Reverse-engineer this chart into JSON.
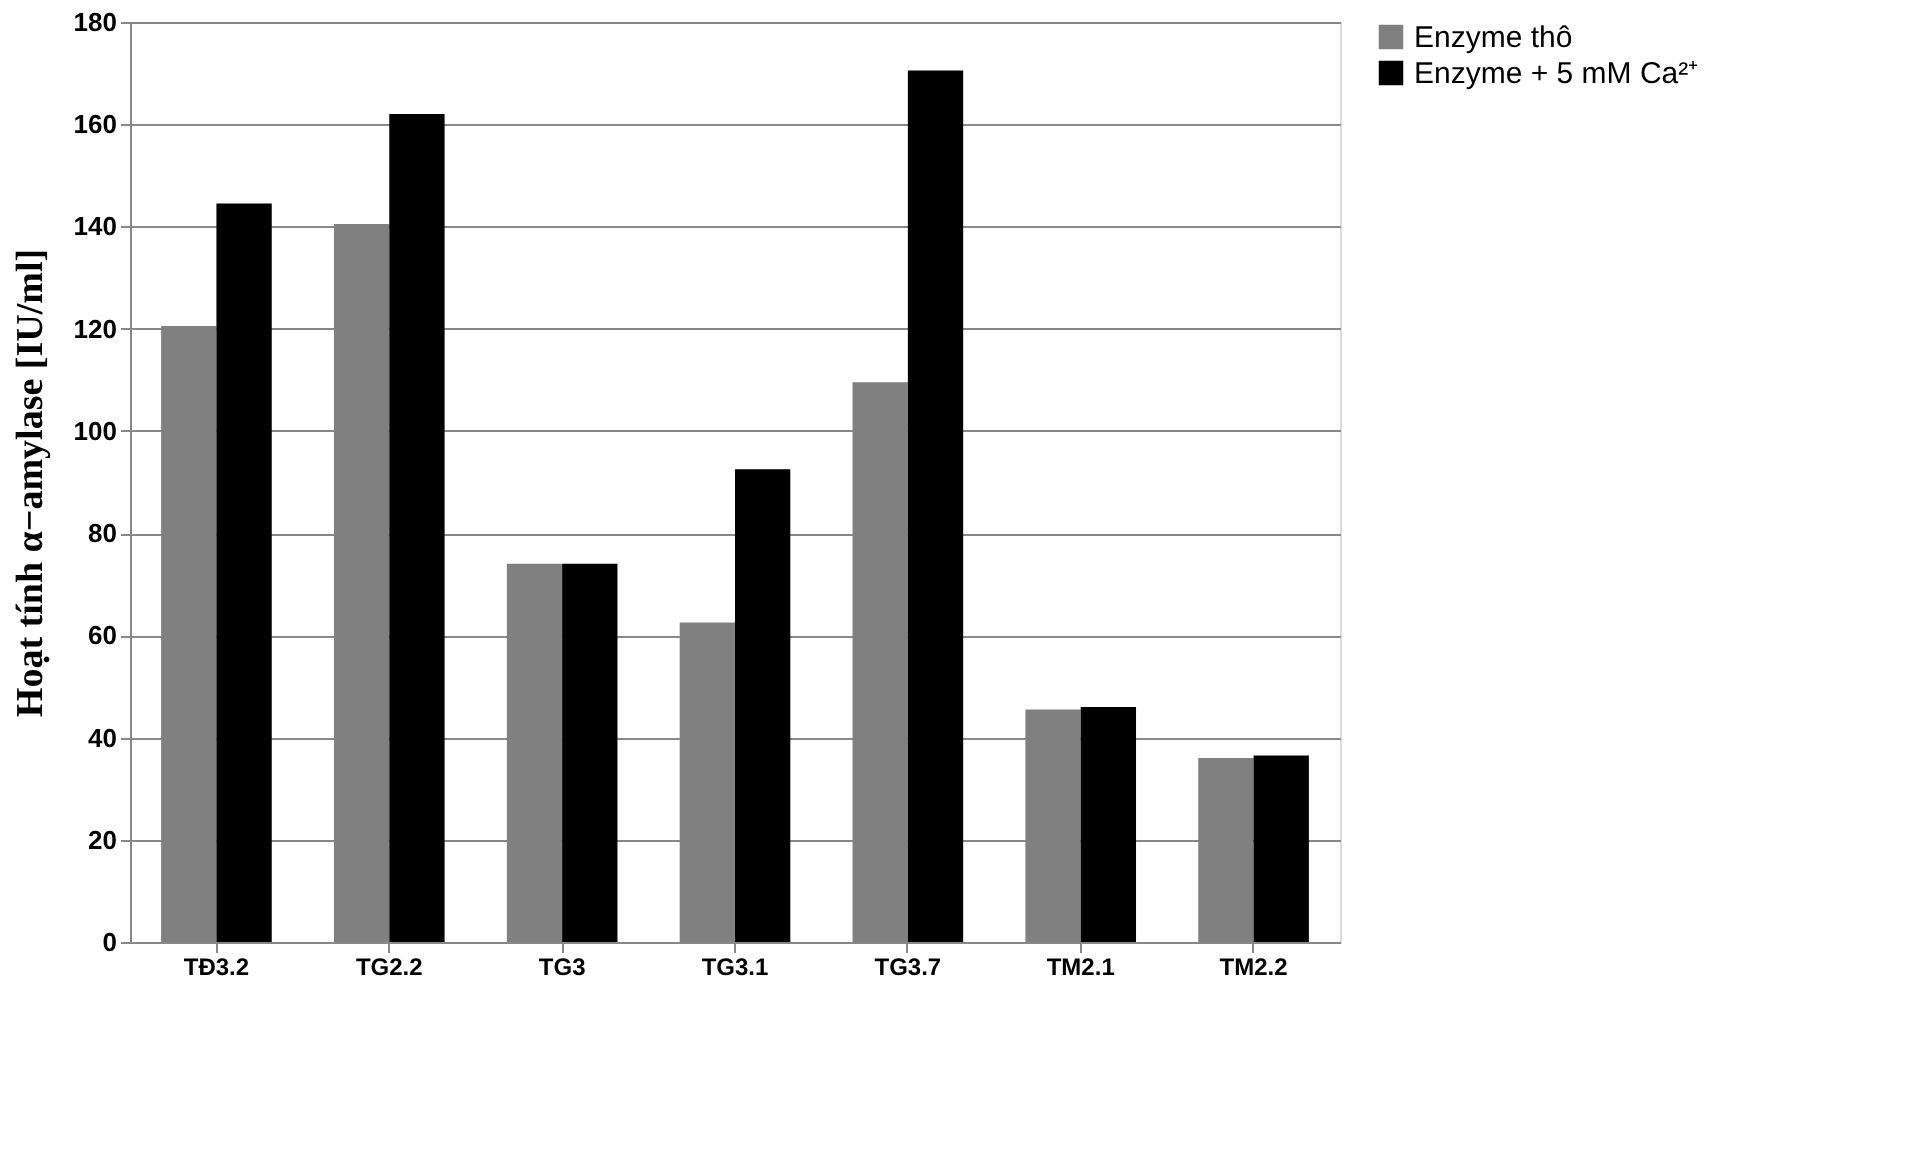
{
  "chart_data": {
    "type": "bar",
    "ylabel": "Hoạt tính α−amylase [IU/ml]",
    "categories": [
      "TĐ3.2",
      "TG2.2",
      "TG3",
      "TG3.1",
      "TG3.7",
      "TM2.1",
      "TM2.2"
    ],
    "series": [
      {
        "name": "Enzyme thô",
        "color": "#808080",
        "values": [
          120.5,
          140.5,
          74,
          62.5,
          109.5,
          45.5,
          36
        ]
      },
      {
        "name": "Enzyme + 5 mM Ca²⁺",
        "color": "#000000",
        "values": [
          144.5,
          162,
          74,
          92.5,
          170.5,
          46,
          36.5
        ]
      }
    ],
    "ylim": [
      0,
      180
    ],
    "yticks": [
      0,
      20,
      40,
      60,
      80,
      100,
      120,
      140,
      160,
      180
    ],
    "grid": "y",
    "legend": "right"
  }
}
